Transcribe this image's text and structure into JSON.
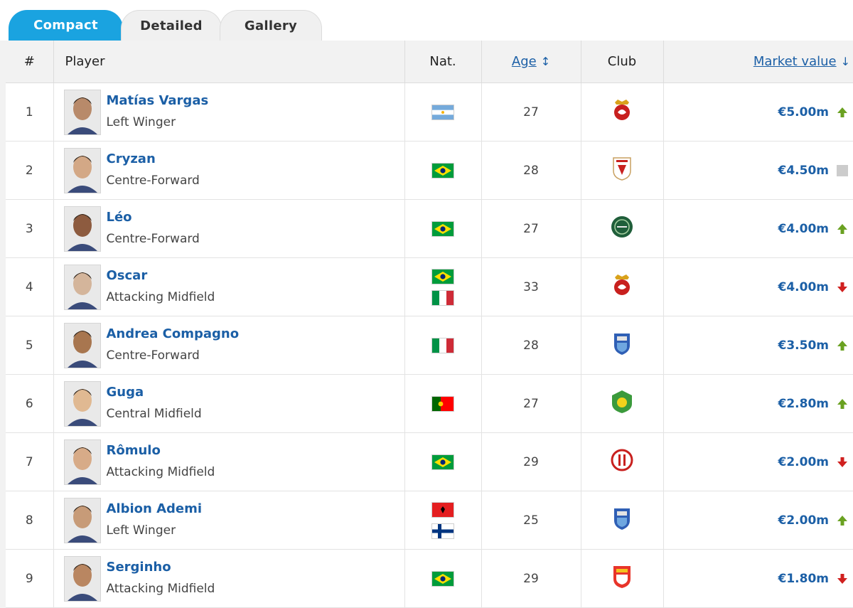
{
  "tabs": [
    "Compact",
    "Detailed",
    "Gallery"
  ],
  "headers": {
    "num": "#",
    "player": "Player",
    "nat": "Nat.",
    "age": "Age",
    "club": "Club",
    "value": "Market value"
  },
  "colors": {
    "link": "#1b5fa6",
    "tab_active": "#1aa3e0",
    "up": "#6aa121",
    "down": "#d0201f",
    "same": "#cccccc"
  },
  "players": [
    {
      "num": "1",
      "name": "Matías Vargas",
      "position": "Left Winger",
      "flags": [
        "argentina-flag"
      ],
      "age": "27",
      "club": "club-crest-red-shanghai",
      "value": "€5.00m",
      "trend": "up"
    },
    {
      "num": "2",
      "name": "Cryzan",
      "position": "Centre-Forward",
      "flags": [
        "brazil-flag"
      ],
      "age": "28",
      "club": "club-crest-white-red-shield",
      "value": "€4.50m",
      "trend": "same"
    },
    {
      "num": "3",
      "name": "Léo",
      "position": "Centre-Forward",
      "flags": [
        "brazil-flag"
      ],
      "age": "27",
      "club": "club-crest-green-round",
      "value": "€4.00m",
      "trend": "up"
    },
    {
      "num": "4",
      "name": "Oscar",
      "position": "Attacking Midfield",
      "flags": [
        "brazil-flag",
        "italy-flag"
      ],
      "age": "33",
      "club": "club-crest-red-shanghai",
      "value": "€4.00m",
      "trend": "down"
    },
    {
      "num": "5",
      "name": "Andrea Compagno",
      "position": "Centre-Forward",
      "flags": [
        "italy-flag"
      ],
      "age": "28",
      "club": "club-crest-blue-shield",
      "value": "€3.50m",
      "trend": "up"
    },
    {
      "num": "6",
      "name": "Guga",
      "position": "Central Midfield",
      "flags": [
        "portugal-flag"
      ],
      "age": "27",
      "club": "club-crest-green-yellow",
      "value": "€2.80m",
      "trend": "up"
    },
    {
      "num": "7",
      "name": "Rômulo",
      "position": "Attacking Midfield",
      "flags": [
        "brazil-flag"
      ],
      "age": "29",
      "club": "club-crest-red-round",
      "value": "€2.00m",
      "trend": "down"
    },
    {
      "num": "8",
      "name": "Albion Ademi",
      "position": "Left Winger",
      "flags": [
        "albania-flag",
        "finland-flag"
      ],
      "age": "25",
      "club": "club-crest-blue-shield",
      "value": "€2.00m",
      "trend": "up"
    },
    {
      "num": "9",
      "name": "Serginho",
      "position": "Attacking Midfield",
      "flags": [
        "brazil-flag"
      ],
      "age": "29",
      "club": "club-crest-red-yellow-shield",
      "value": "€1.80m",
      "trend": "down"
    }
  ]
}
